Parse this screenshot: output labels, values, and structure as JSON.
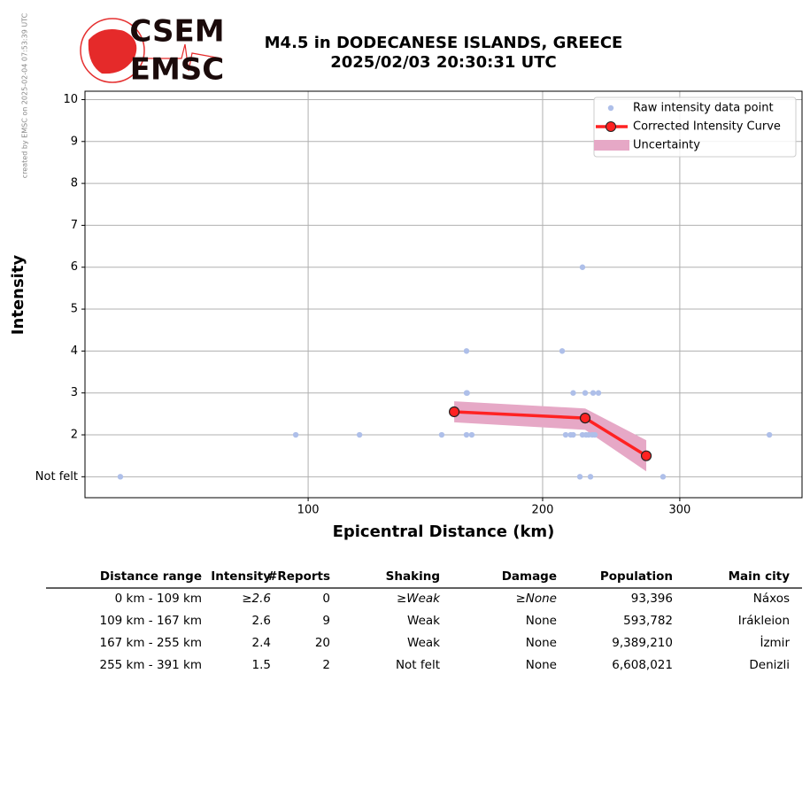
{
  "credit": "created by EMSC on 2025-02-04 07:53:39 UTC",
  "logo": {
    "top": "CSEM",
    "bottom": "EMSC"
  },
  "chart_data": {
    "type": "scatter",
    "title": [
      "M4.5 in DODECANESE ISLANDS, GREECE",
      "2025/02/03 20:30:31 UTC"
    ],
    "x_label": "Epicentral Distance (km)",
    "y_label": "Intensity",
    "log_x": true,
    "grid": true,
    "legend_loc": "upper right",
    "xlim": [
      51.7,
      430.6
    ],
    "ylim": [
      0.5,
      10.2
    ],
    "xticks": [
      100,
      200,
      300
    ],
    "yticks": [
      {
        "value": 1,
        "label": "Not felt"
      },
      2,
      3,
      4,
      5,
      6,
      7,
      8,
      9,
      10
    ],
    "series": [
      {
        "name": "Raw intensity data point",
        "kind": "points",
        "color": "#aebfe9",
        "x": [
          57.4,
          96.4,
          116.4,
          148.4,
          159.7,
          159.7,
          160,
          159.7,
          162.2,
          211.9,
          214.1,
          217.3,
          218.9,
          218.9,
          223.3,
          225,
          225,
          226.8,
          227.4,
          229.2,
          230.4,
          231.6,
          232.2,
          235.9,
          233.4,
          285.5,
          391
        ],
        "values": [
          1,
          2,
          2,
          2,
          4,
          3,
          3,
          2,
          2,
          4,
          2,
          2,
          2,
          3,
          1,
          6,
          2,
          3,
          2,
          2,
          1,
          2,
          3,
          3,
          2,
          1,
          2
        ]
      },
      {
        "name": "Corrected Intensity Curve",
        "kind": "line",
        "color": "#ff2222",
        "x": [
          154,
          226.8,
          271.7
        ],
        "values": [
          2.55,
          2.4,
          1.5
        ]
      },
      {
        "name": "Uncertainty",
        "kind": "band",
        "color": "#e6a8c6",
        "x": [
          154,
          226.8,
          271.7
        ],
        "upper": [
          2.8,
          2.63,
          1.87
        ],
        "lower": [
          2.3,
          2.12,
          1.13
        ]
      }
    ]
  },
  "table": {
    "columns": [
      "Distance range",
      "Intensity",
      "#Reports",
      "Shaking",
      "Damage",
      "Population",
      "Main city"
    ],
    "rows": [
      [
        "0 km -  109 km",
        "≥2.6",
        "0",
        "≥Weak",
        "≥None",
        "93,396",
        "Náxos"
      ],
      [
        "109 km -  167 km",
        "2.6",
        "9",
        "Weak",
        "None",
        "593,782",
        "Irákleion"
      ],
      [
        "167 km -  255 km",
        "2.4",
        "20",
        "Weak",
        "None",
        "9,389,210",
        "İzmir"
      ],
      [
        "255 km -  391 km",
        "1.5",
        "2",
        "Not felt",
        "None",
        "6,608,021",
        "Denizli"
      ]
    ]
  }
}
